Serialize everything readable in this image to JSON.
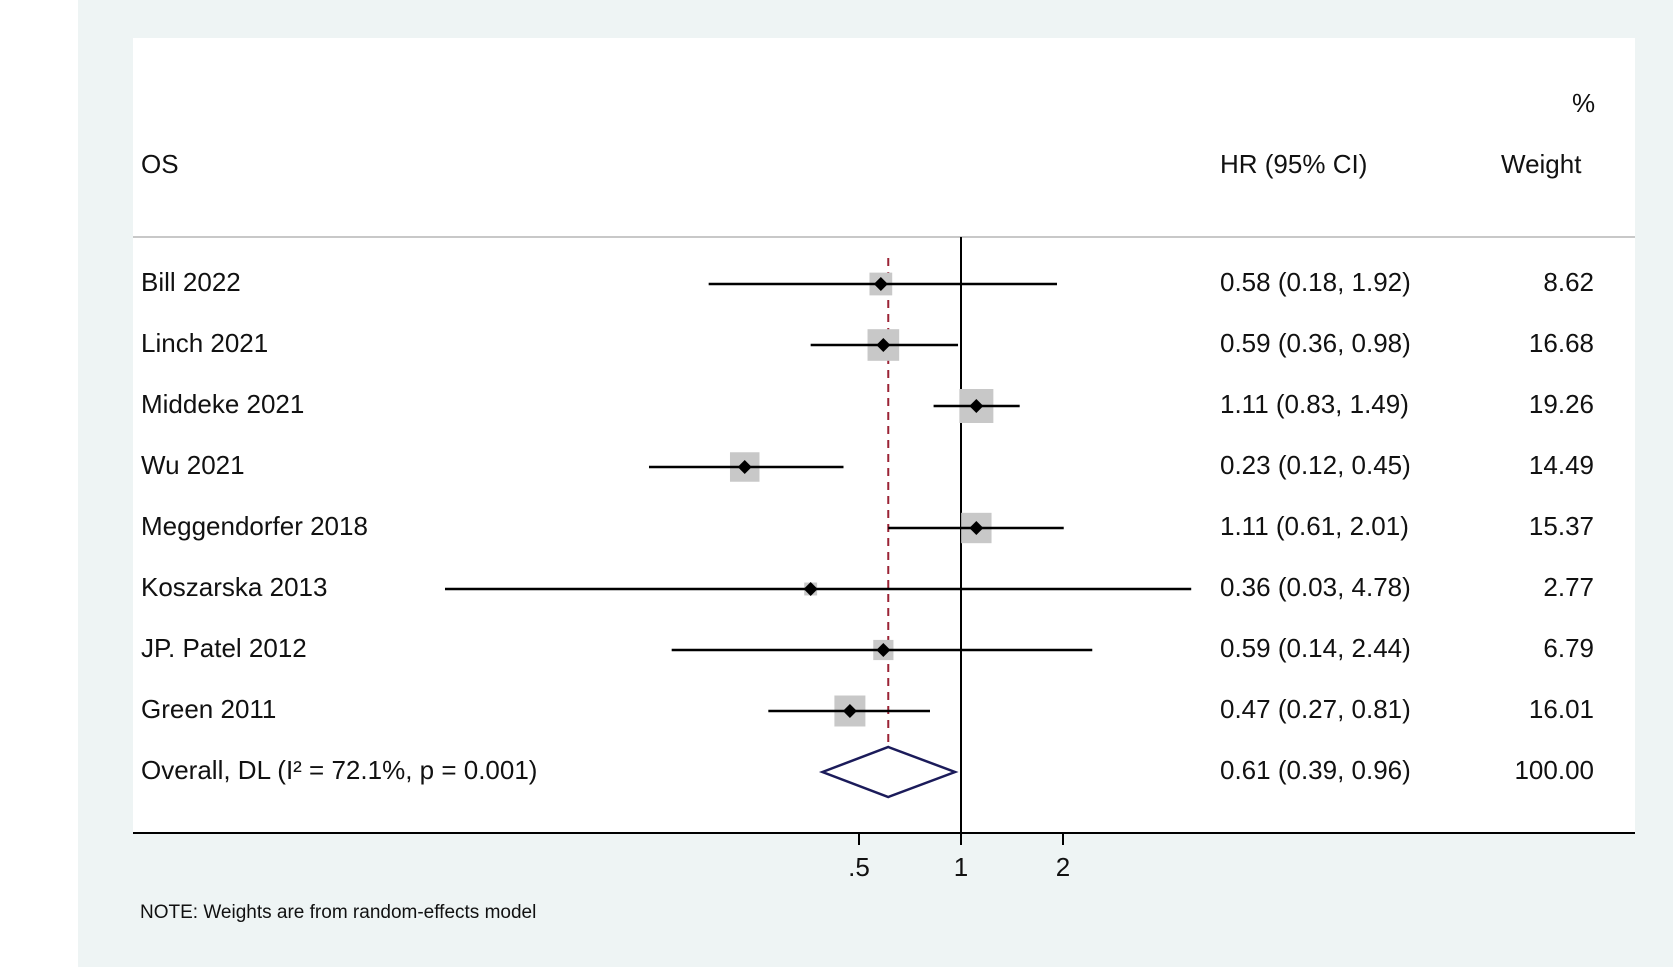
{
  "chart_data": {
    "type": "forest",
    "title": "OS",
    "header": {
      "effect_label": "HR (95% CI)",
      "weight_label_top": "%",
      "weight_label": "Weight"
    },
    "studies": [
      {
        "name": "Bill 2022",
        "hr": 0.58,
        "lower": 0.18,
        "upper": 1.92,
        "ci_text": "0.58 (0.18, 1.92)",
        "weight": 8.62,
        "weight_text": "8.62"
      },
      {
        "name": "Linch 2021",
        "hr": 0.59,
        "lower": 0.36,
        "upper": 0.98,
        "ci_text": "0.59 (0.36, 0.98)",
        "weight": 16.68,
        "weight_text": "16.68"
      },
      {
        "name": "Middeke 2021",
        "hr": 1.11,
        "lower": 0.83,
        "upper": 1.49,
        "ci_text": "1.11 (0.83, 1.49)",
        "weight": 19.26,
        "weight_text": "19.26"
      },
      {
        "name": "Wu 2021",
        "hr": 0.23,
        "lower": 0.12,
        "upper": 0.45,
        "ci_text": "0.23 (0.12, 0.45)",
        "weight": 14.49,
        "weight_text": "14.49"
      },
      {
        "name": "Meggendorfer 2018",
        "hr": 1.11,
        "lower": 0.61,
        "upper": 2.01,
        "ci_text": "1.11 (0.61, 2.01)",
        "weight": 15.37,
        "weight_text": "15.37"
      },
      {
        "name": "Koszarska 2013",
        "hr": 0.36,
        "lower": 0.03,
        "upper": 4.78,
        "ci_text": "0.36 (0.03, 4.78)",
        "weight": 2.77,
        "weight_text": "2.77"
      },
      {
        "name": "JP. Patel 2012",
        "hr": 0.59,
        "lower": 0.14,
        "upper": 2.44,
        "ci_text": "0.59 (0.14, 2.44)",
        "weight": 6.79,
        "weight_text": "6.79"
      },
      {
        "name": "Green 2011",
        "hr": 0.47,
        "lower": 0.27,
        "upper": 0.81,
        "ci_text": "0.47 (0.27, 0.81)",
        "weight": 16.01,
        "weight_text": "16.01"
      }
    ],
    "overall": {
      "name": "Overall, DL (I² = 72.1%, p = 0.001)",
      "hr": 0.61,
      "lower": 0.39,
      "upper": 0.96,
      "ci_text": "0.61 (0.39, 0.96)",
      "weight_text": "100.00"
    },
    "x_axis": {
      "scale": "log",
      "ticks": [
        0.5,
        1,
        2
      ],
      "tick_labels": [
        ".5",
        "1",
        "2"
      ],
      "null_line": 1
    },
    "note": "NOTE: Weights are from random-effects model",
    "colors": {
      "background": "#eef4f4",
      "panel": "#ffffff",
      "weight_box": "#c8c8c8",
      "point": "#000000",
      "overall_diamond": "#1b1b5a",
      "overall_line": "#9b2335",
      "axis": "#000000"
    }
  }
}
